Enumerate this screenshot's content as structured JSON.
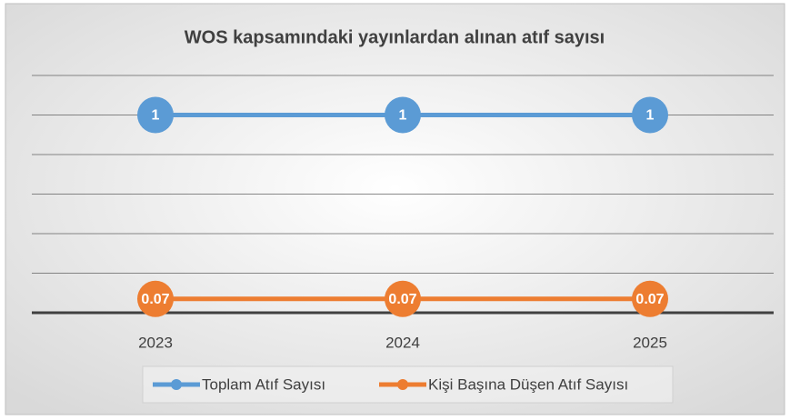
{
  "chart_data": {
    "type": "line",
    "title": "WOS kapsamındaki yayınlardan alınan atıf sayısı",
    "categories": [
      "2023",
      "2024",
      "2025"
    ],
    "series": [
      {
        "name": "Toplam Atıf Sayısı",
        "color": "#5b9bd5",
        "values": [
          1,
          1,
          1
        ]
      },
      {
        "name": "Kişi Başına Düşen Atıf Sayısı",
        "color": "#ed7d31",
        "values": [
          0.07,
          0.07,
          0.07
        ]
      }
    ],
    "ylim": [
      0,
      1.2
    ],
    "yticks": [
      0,
      0.2,
      0.4,
      0.6,
      0.8,
      1,
      1.2
    ],
    "grid": true,
    "legend": "bottom"
  }
}
